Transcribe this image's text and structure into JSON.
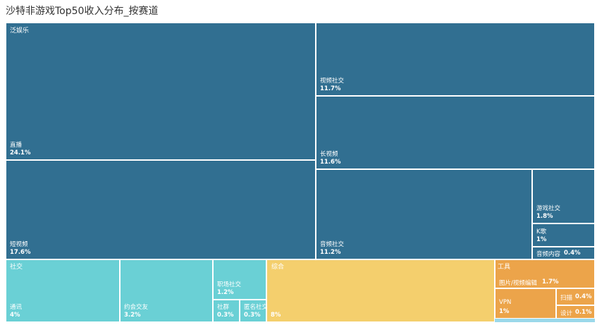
{
  "title": "沙特非游戏Top50收入分布_按赛道",
  "colors": {
    "entertainment": "#316f91",
    "social": "#6ad0d5",
    "general": "#f4cf6d",
    "tools": "#eca44a",
    "tools_extra": "#9ad8ea"
  },
  "chart_data": {
    "type": "treemap",
    "title": "沙特非游戏Top50收入分布_按赛道",
    "groups": [
      {
        "name": "泛娱乐",
        "children": [
          {
            "name": "直播",
            "value": 24.1,
            "label": "24.1%"
          },
          {
            "name": "短视频",
            "value": 17.6,
            "label": "17.6%"
          },
          {
            "name": "视频社交",
            "value": 11.7,
            "label": "11.7%"
          },
          {
            "name": "长视频",
            "value": 11.6,
            "label": "11.6%"
          },
          {
            "name": "音频社交",
            "value": 11.2,
            "label": "11.2%"
          },
          {
            "name": "游戏社交",
            "value": 1.8,
            "label": "1.8%"
          },
          {
            "name": "K歌",
            "value": 1.0,
            "label": "1%"
          },
          {
            "name": "音频内容",
            "value": 0.4,
            "label": "0.4%"
          }
        ]
      },
      {
        "name": "社交",
        "children": [
          {
            "name": "通讯",
            "value": 4,
            "label": "4%"
          },
          {
            "name": "约会交友",
            "value": 3.2,
            "label": "3.2%"
          },
          {
            "name": "职场社交",
            "value": 1.2,
            "label": "1.2%"
          },
          {
            "name": "社群",
            "value": 0.3,
            "label": "0.3%"
          },
          {
            "name": "匿名社交",
            "value": 0.3,
            "label": "0.3%"
          }
        ]
      },
      {
        "name": "综合",
        "children": [
          {
            "name": "",
            "value": 8,
            "label": "8%"
          }
        ]
      },
      {
        "name": "工具",
        "children": [
          {
            "name": "图片/视频编辑",
            "value": 1.7,
            "label": "1.7%"
          },
          {
            "name": "VPN",
            "value": 1,
            "label": "1%"
          },
          {
            "name": "扫描",
            "value": 0.4,
            "label": "0.4%"
          },
          {
            "name": "设计",
            "value": 0.1,
            "label": "0.1%"
          }
        ]
      }
    ]
  }
}
